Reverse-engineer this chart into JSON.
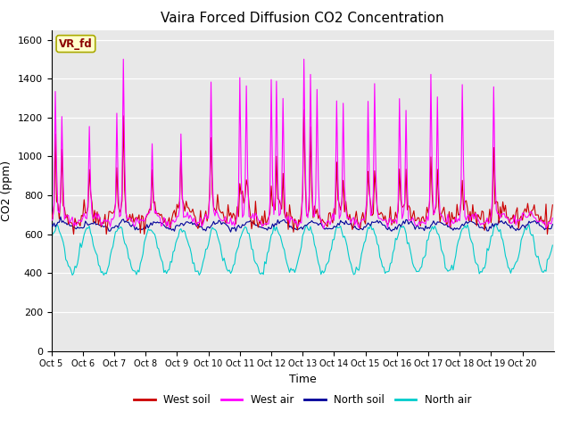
{
  "title": "Vaira Forced Diffusion CO2 Concentration",
  "xlabel": "Time",
  "ylabel": "CO2 (ppm)",
  "ylim": [
    0,
    1650
  ],
  "yticks": [
    0,
    200,
    400,
    600,
    800,
    1000,
    1200,
    1400,
    1600
  ],
  "xlim": [
    0,
    384
  ],
  "xtick_labels": [
    "Oct 5",
    "Oct 6",
    "Oct 7",
    "Oct 8",
    "Oct 9",
    "Oct 10",
    "Oct 11",
    "Oct 12",
    "Oct 13",
    "Oct 14",
    "Oct 15",
    "Oct 16",
    "Oct 17",
    "Oct 18",
    "Oct 19",
    "Oct 20"
  ],
  "xtick_positions": [
    0,
    24,
    48,
    72,
    96,
    120,
    144,
    168,
    192,
    216,
    240,
    264,
    288,
    312,
    336,
    360
  ],
  "legend_labels": [
    "West soil",
    "West air",
    "North soil",
    "North air"
  ],
  "legend_colors": [
    "#cc0000",
    "#ff00ff",
    "#000099",
    "#00cccc"
  ],
  "colors": {
    "west_soil": "#cc0000",
    "west_air": "#ff00ff",
    "north_soil": "#000099",
    "north_air": "#00cccc"
  },
  "background_color": "#e8e8e8",
  "annotation_text": "VR_fd",
  "annotation_color": "#8b0000",
  "annotation_bg": "#ffffcc",
  "grid_color": "#ffffff",
  "linewidth": 0.8,
  "figsize": [
    6.4,
    4.8
  ],
  "dpi": 100
}
